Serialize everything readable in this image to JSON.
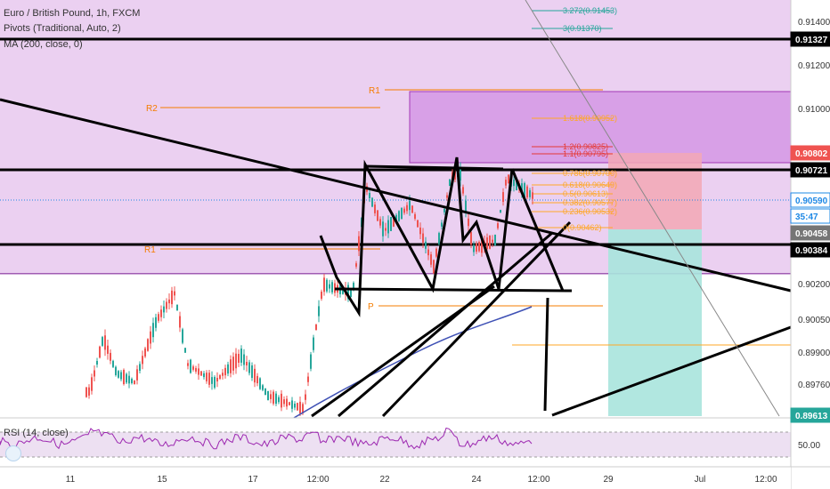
{
  "header": {
    "title": "Euro / British Pound, 1h, FXCM",
    "pivots_indicator": "Pivots (Traditional, Auto, 2)",
    "ma_indicator": "MA (200, close, 0)"
  },
  "rsi": {
    "label": "RSI (14, close)",
    "level_label": "50.00"
  },
  "price_axis": {
    "ticks": [
      "0.91400",
      "0.91200",
      "0.91000",
      "0.90200",
      "0.90050",
      "0.89900",
      "0.89760"
    ],
    "badges": [
      {
        "name": "level-091327",
        "text": "0.91327",
        "bg": "#000000",
        "fg": "#ffffff"
      },
      {
        "name": "level-090802",
        "text": "0.90802",
        "bg": "#ef5350",
        "fg": "#ffffff"
      },
      {
        "name": "level-090721",
        "text": "0.90721",
        "bg": "#000000",
        "fg": "#ffffff"
      },
      {
        "name": "current-price",
        "text": "0.90590",
        "bg": "#ffffff",
        "fg": "#1e88e5"
      },
      {
        "name": "countdown",
        "text": "35:47",
        "bg": "#ffffff",
        "fg": "#1e88e5"
      },
      {
        "name": "level-090458",
        "text": "0.90458",
        "bg": "#757575",
        "fg": "#ffffff"
      },
      {
        "name": "level-090384",
        "text": "0.90384",
        "bg": "#000000",
        "fg": "#ffffff"
      },
      {
        "name": "level-089613",
        "text": "0.89613",
        "bg": "#26a69a",
        "fg": "#ffffff"
      }
    ]
  },
  "time_axis": {
    "ticks": [
      "11",
      "15",
      "17",
      "12:00",
      "22",
      "24",
      "12:00",
      "29",
      "Jul",
      "12:00"
    ]
  },
  "pivot_labels": {
    "r2": "R2",
    "r1_top": "R1",
    "r1": "R1",
    "p": "P"
  },
  "fibonacci": {
    "ext_3272": "3.272(0.91453)",
    "ext_3": "3(0.91370)",
    "ext_1618": "1.618(0.90952)",
    "ext_12": "1.2(0.90825)",
    "ext_11": "1.1(0.90795)",
    "lvl_0786": "0.786(0.90700)",
    "lvl_0618": "0.618(0.90649)",
    "lvl_05": "0.5(0.90613)",
    "lvl_0382": "0.382(0.90577)",
    "lvl_0236": "0.236(0.90532)",
    "lvl_0": "0(0.90462)"
  },
  "colors": {
    "bull": "#26a69a",
    "bear": "#ef5350",
    "zone_fill": "#e1bee7",
    "zone_dark": "#ce93d8",
    "ma_line": "#3f51b5",
    "fib": "#ffa726",
    "pivot": "#f57c00"
  }
}
